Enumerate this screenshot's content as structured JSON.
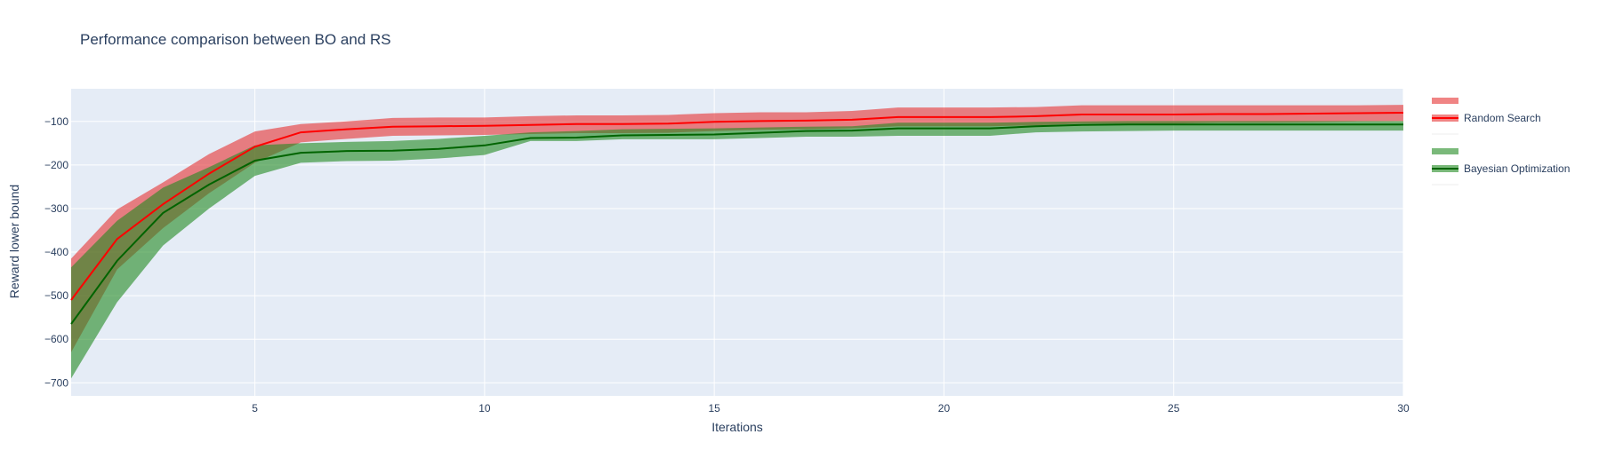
{
  "chart_data": {
    "type": "line",
    "title": "Performance comparison between BO and RS",
    "xlabel": "Iterations",
    "ylabel": "Reward lower bound",
    "xlim": [
      1,
      30
    ],
    "ylim": [
      -730,
      -25
    ],
    "xticks": [
      5,
      10,
      15,
      20,
      25,
      30
    ],
    "yticks": [
      -100,
      -200,
      -300,
      -400,
      -500,
      -600,
      -700
    ],
    "grid": true,
    "legend_position": "right",
    "x": [
      1,
      2,
      3,
      4,
      5,
      6,
      7,
      8,
      9,
      10,
      11,
      12,
      13,
      14,
      15,
      16,
      17,
      18,
      19,
      20,
      21,
      22,
      23,
      24,
      25,
      26,
      27,
      28,
      29,
      30
    ],
    "series": [
      {
        "name": "Random Search",
        "color": "#ff0000",
        "band_color": "rgba(230,50,50,0.6)",
        "mean": [
          -510,
          -370,
          -290,
          -220,
          -158,
          -125,
          -118,
          -112,
          -111,
          -110,
          -108,
          -106,
          -106,
          -105,
          -101,
          -99,
          -98,
          -96,
          -90,
          -90,
          -90,
          -88,
          -84,
          -84,
          -84,
          -83,
          -83,
          -82,
          -81,
          -80
        ],
        "upper": [
          -415,
          -302,
          -240,
          -175,
          -123,
          -106,
          -100,
          -92,
          -91,
          -91,
          -88,
          -86,
          -86,
          -85,
          -81,
          -79,
          -79,
          -76,
          -68,
          -68,
          -68,
          -67,
          -63,
          -63,
          -63,
          -63,
          -63,
          -63,
          -63,
          -62
        ],
        "lower": [
          -630,
          -440,
          -345,
          -265,
          -195,
          -148,
          -140,
          -133,
          -132,
          -131,
          -129,
          -127,
          -127,
          -126,
          -122,
          -119,
          -118,
          -116,
          -111,
          -111,
          -111,
          -109,
          -105,
          -105,
          -105,
          -103,
          -103,
          -102,
          -100,
          -99
        ]
      },
      {
        "name": "Bayesian Optimization",
        "color": "#006400",
        "band_color": "rgba(34,139,34,0.6)",
        "mean": [
          -565,
          -420,
          -310,
          -245,
          -190,
          -172,
          -168,
          -167,
          -163,
          -155,
          -138,
          -137,
          -132,
          -131,
          -130,
          -126,
          -122,
          -121,
          -116,
          -116,
          -116,
          -111,
          -108,
          -107,
          -107,
          -107,
          -107,
          -107,
          -107,
          -107
        ],
        "upper": [
          -435,
          -328,
          -252,
          -205,
          -155,
          -150,
          -147,
          -145,
          -140,
          -133,
          -125,
          -122,
          -118,
          -117,
          -116,
          -114,
          -112,
          -111,
          -103,
          -103,
          -103,
          -101,
          -100,
          -99,
          -99,
          -99,
          -99,
          -99,
          -99,
          -99
        ],
        "lower": [
          -690,
          -515,
          -385,
          -300,
          -225,
          -195,
          -191,
          -190,
          -185,
          -177,
          -145,
          -145,
          -141,
          -141,
          -141,
          -138,
          -135,
          -135,
          -133,
          -133,
          -133,
          -125,
          -123,
          -122,
          -121,
          -121,
          -121,
          -121,
          -121,
          -121
        ]
      }
    ]
  }
}
